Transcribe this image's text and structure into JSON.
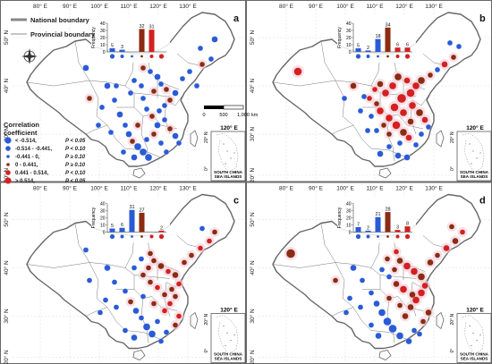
{
  "lon_labels": [
    "80° E",
    "90° E",
    "100° E",
    "110° E",
    "120° E",
    "130° E"
  ],
  "lat_labels": [
    "50° N",
    "40° N",
    "30° N",
    "20° N"
  ],
  "legend": {
    "national": "National boundary",
    "provincial": "Provincial boundary",
    "title_line1": "Correlation",
    "title_line2": "coefficient",
    "rows": [
      {
        "label": "< -0.514,",
        "p": "P < 0.05",
        "color": "#2a5bd7"
      },
      {
        "label": "-0.514 - -0.441,",
        "p": "P < 0.10",
        "color": "#2a5bd7"
      },
      {
        "label": "-0.441 - 0,",
        "p": "P ≥ 0.10",
        "color": "#2a5bd7"
      },
      {
        "label": "0 - 0.441,",
        "p": "P ≥ 0.10",
        "color": "#8b2c12"
      },
      {
        "label": "0.441 - 0.514,",
        "p": "P < 0.10",
        "color": "#d42020"
      },
      {
        "label": "> 0.514,",
        "p": "P < 0.05",
        "color": "#d42020"
      }
    ]
  },
  "scalebar": {
    "labels": [
      "0",
      "500",
      "1,000"
    ],
    "unit": "km"
  },
  "inset": {
    "lon_label": "120° E",
    "lat_top": "20° N",
    "lat_bottom": "0°",
    "name_line1": "SOUTH CHINA",
    "name_line2": "SEA ISLANDS"
  },
  "chart_data": [
    {
      "type": "bar",
      "panel": "a",
      "ylabel": "Frequency",
      "yticks": [
        0,
        10,
        20,
        30,
        40
      ],
      "ylim": [
        0,
        40
      ],
      "values": [
        5,
        3,
        0,
        32,
        31,
        0
      ],
      "labels": [
        "5",
        "3",
        "",
        "32",
        "31",
        ""
      ]
    },
    {
      "type": "bar",
      "panel": "b",
      "ylabel": "Frequency",
      "yticks": [
        0,
        10,
        20,
        30,
        40
      ],
      "ylim": [
        0,
        40
      ],
      "values": [
        5,
        2,
        18,
        34,
        6,
        6
      ],
      "labels": [
        "5",
        "2",
        "18",
        "34",
        "6",
        "6"
      ]
    },
    {
      "type": "bar",
      "panel": "c",
      "ylabel": "Frequency",
      "yticks": [
        0,
        10,
        20,
        30,
        40
      ],
      "ylim": [
        0,
        40
      ],
      "values": [
        5,
        6,
        31,
        27,
        0,
        2
      ],
      "labels": [
        "5",
        "6",
        "31",
        "27",
        "",
        "2"
      ]
    },
    {
      "type": "bar",
      "panel": "d",
      "ylabel": "Frequency",
      "yticks": [
        0,
        10,
        20,
        30,
        40
      ],
      "ylim": [
        0,
        40
      ],
      "values": [
        7,
        2,
        21,
        28,
        3,
        8
      ],
      "labels": [
        "7",
        "2",
        "21",
        "28",
        "3",
        "8"
      ]
    }
  ]
}
